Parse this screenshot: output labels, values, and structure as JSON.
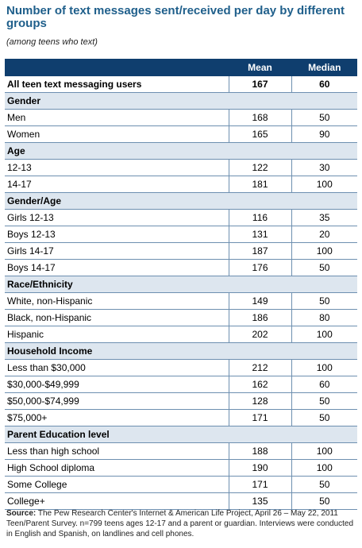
{
  "title": "Number of text messages sent/received per day by different groups",
  "subtitle": "(among teens who text)",
  "columns": {
    "mean": "Mean",
    "median": "Median"
  },
  "total": {
    "label": "All teen text messaging users",
    "mean": "167",
    "median": "60"
  },
  "groups": [
    {
      "label": "Gender",
      "rows": [
        {
          "label": "Men",
          "mean": "168",
          "median": "50"
        },
        {
          "label": "Women",
          "mean": "165",
          "median": "90"
        }
      ]
    },
    {
      "label": "Age",
      "rows": [
        {
          "label": "12-13",
          "mean": "122",
          "median": "30"
        },
        {
          "label": "14-17",
          "mean": "181",
          "median": "100"
        }
      ]
    },
    {
      "label": "Gender/Age",
      "rows": [
        {
          "label": "Girls 12-13",
          "mean": "116",
          "median": "35"
        },
        {
          "label": "Boys 12-13",
          "mean": "131",
          "median": "20"
        },
        {
          "label": "Girls 14-17",
          "mean": "187",
          "median": "100"
        },
        {
          "label": "Boys 14-17",
          "mean": "176",
          "median": "50"
        }
      ]
    },
    {
      "label": "Race/Ethnicity",
      "rows": [
        {
          "label": "White, non-Hispanic",
          "mean": "149",
          "median": "50"
        },
        {
          "label": "Black, non-Hispanic",
          "mean": "186",
          "median": "80"
        },
        {
          "label": "Hispanic",
          "mean": "202",
          "median": "100"
        }
      ]
    },
    {
      "label": "Household Income",
      "rows": [
        {
          "label": "Less than $30,000",
          "mean": "212",
          "median": "100"
        },
        {
          "label": "$30,000-$49,999",
          "mean": "162",
          "median": "60"
        },
        {
          "label": "$50,000-$74,999",
          "mean": "128",
          "median": "50"
        },
        {
          "label": "$75,000+",
          "mean": "171",
          "median": "50"
        }
      ]
    },
    {
      "label": "Parent Education level",
      "rows": [
        {
          "label": "Less than high school",
          "mean": "188",
          "median": "100"
        },
        {
          "label": "High School diploma",
          "mean": "190",
          "median": "100"
        },
        {
          "label": "Some College",
          "mean": "171",
          "median": "50"
        },
        {
          "label": "College+",
          "mean": "135",
          "median": "50"
        }
      ]
    }
  ],
  "source": {
    "label": "Source:",
    "text": "The Pew Research Center's Internet & American Life Project, April 26 – May 22, 2011 Teen/Parent Survey. n=799 teens ages 12-17 and a parent or guardian. Interviews were conducted in English and Spanish, on landlines and cell phones."
  },
  "colors": {
    "title": "#1f5f8b",
    "header_bg": "#0f3e6e",
    "group_bg": "#dde6ef",
    "rule": "#6d8fb0"
  },
  "chart_data": {
    "type": "table",
    "title": "Number of text messages sent/received per day by different groups",
    "subtitle": "(among teens who text)",
    "columns": [
      "",
      "Mean",
      "Median"
    ],
    "rows": [
      [
        "All teen text messaging users",
        167,
        60
      ],
      [
        "Gender",
        null,
        null
      ],
      [
        "Men",
        168,
        50
      ],
      [
        "Women",
        165,
        90
      ],
      [
        "Age",
        null,
        null
      ],
      [
        "12-13",
        122,
        30
      ],
      [
        "14-17",
        181,
        100
      ],
      [
        "Gender/Age",
        null,
        null
      ],
      [
        "Girls 12-13",
        116,
        35
      ],
      [
        "Boys 12-13",
        131,
        20
      ],
      [
        "Girls 14-17",
        187,
        100
      ],
      [
        "Boys 14-17",
        176,
        50
      ],
      [
        "Race/Ethnicity",
        null,
        null
      ],
      [
        "White, non-Hispanic",
        149,
        50
      ],
      [
        "Black, non-Hispanic",
        186,
        80
      ],
      [
        "Hispanic",
        202,
        100
      ],
      [
        "Household Income",
        null,
        null
      ],
      [
        "Less than $30,000",
        212,
        100
      ],
      [
        "$30,000-$49,999",
        162,
        60
      ],
      [
        "$50,000-$74,999",
        128,
        50
      ],
      [
        "$75,000+",
        171,
        50
      ],
      [
        "Parent Education level",
        null,
        null
      ],
      [
        "Less than high school",
        188,
        100
      ],
      [
        "High School diploma",
        190,
        100
      ],
      [
        "Some College",
        171,
        50
      ],
      [
        "College+",
        135,
        50
      ]
    ]
  }
}
